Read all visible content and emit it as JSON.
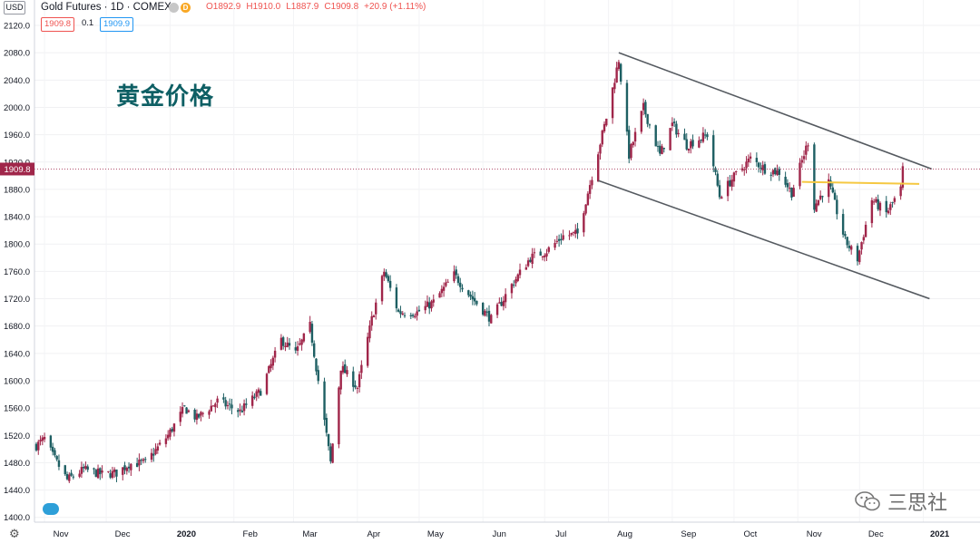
{
  "header": {
    "currency_badge": "USD",
    "title": "Gold Futures · 1D · COMEX",
    "ohlc": {
      "open": "O1892.9",
      "high": "H1910.0",
      "low": "L1887.9",
      "close": "C1909.8",
      "change": "+20.9 (+1.11%)"
    },
    "bid": "1909.8",
    "spread": "0.1",
    "ask": "1909.9",
    "icon": "D"
  },
  "overlay_title": "黄金价格",
  "watermark": "三思社",
  "colors": {
    "up": "#a0264a",
    "down": "#1e5f63",
    "trendline": "#555a60",
    "support": "#f5c842",
    "price_label": "#a0264a",
    "title_cn": "#0e5f64"
  },
  "chart_data": {
    "type": "candlestick",
    "title": "Gold Futures · 1D · COMEX",
    "y_axis": {
      "ticks": [
        1400.0,
        1440.0,
        1480.0,
        1520.0,
        1560.0,
        1600.0,
        1640.0,
        1680.0,
        1720.0,
        1760.0,
        1800.0,
        1840.0,
        1880.0,
        1920.0,
        1960.0,
        2000.0,
        2040.0,
        2080.0,
        2120.0
      ],
      "range": [
        1393,
        2128
      ],
      "position": "left"
    },
    "x_axis": {
      "labels": [
        "Nov",
        "Dec",
        "2020",
        "Feb",
        "Mar",
        "Apr",
        "May",
        "Jun",
        "Jul",
        "Aug",
        "Sep",
        "Oct",
        "Nov",
        "Dec",
        "2021"
      ]
    },
    "last_price": 1909.8,
    "grid": true,
    "anchors": [
      [
        "2019-10-28",
        1505
      ],
      [
        "2019-11-01",
        1515
      ],
      [
        "2019-11-05",
        1490
      ],
      [
        "2019-11-12",
        1455
      ],
      [
        "2019-11-20",
        1470
      ],
      [
        "2019-11-29",
        1463
      ],
      [
        "2019-12-06",
        1465
      ],
      [
        "2019-12-12",
        1478
      ],
      [
        "2019-12-20",
        1480
      ],
      [
        "2019-12-31",
        1520
      ],
      [
        "2020-01-08",
        1560
      ],
      [
        "2020-01-14",
        1545
      ],
      [
        "2020-01-24",
        1570
      ],
      [
        "2020-02-04",
        1555
      ],
      [
        "2020-02-14",
        1585
      ],
      [
        "2020-02-24",
        1660
      ],
      [
        "2020-03-02",
        1640
      ],
      [
        "2020-03-09",
        1680
      ],
      [
        "2020-03-19",
        1480
      ],
      [
        "2020-03-24",
        1620
      ],
      [
        "2020-04-01",
        1590
      ],
      [
        "2020-04-08",
        1690
      ],
      [
        "2020-04-14",
        1760
      ],
      [
        "2020-04-21",
        1700
      ],
      [
        "2020-04-30",
        1700
      ],
      [
        "2020-05-08",
        1715
      ],
      [
        "2020-05-18",
        1755
      ],
      [
        "2020-05-27",
        1720
      ],
      [
        "2020-06-05",
        1690
      ],
      [
        "2020-06-15",
        1740
      ],
      [
        "2020-06-24",
        1780
      ],
      [
        "2020-07-02",
        1790
      ],
      [
        "2020-07-10",
        1812
      ],
      [
        "2020-07-17",
        1815
      ],
      [
        "2020-07-24",
        1900
      ],
      [
        "2020-07-31",
        1985
      ],
      [
        "2020-08-06",
        2070
      ],
      [
        "2020-08-11",
        1930
      ],
      [
        "2020-08-18",
        2000
      ],
      [
        "2020-08-26",
        1930
      ],
      [
        "2020-09-01",
        1975
      ],
      [
        "2020-09-08",
        1945
      ],
      [
        "2020-09-18",
        1960
      ],
      [
        "2020-09-24",
        1870
      ],
      [
        "2020-09-30",
        1895
      ],
      [
        "2020-10-09",
        1925
      ],
      [
        "2020-10-16",
        1910
      ],
      [
        "2020-10-23",
        1905
      ],
      [
        "2020-10-29",
        1875
      ],
      [
        "2020-11-06",
        1950
      ],
      [
        "2020-11-09",
        1855
      ],
      [
        "2020-11-16",
        1890
      ],
      [
        "2020-11-24",
        1805
      ],
      [
        "2020-11-30",
        1778
      ],
      [
        "2020-12-07",
        1865
      ],
      [
        "2020-12-14",
        1845
      ],
      [
        "2020-12-21",
        1880
      ],
      [
        "2020-12-22",
        1909.8
      ]
    ],
    "annotations": [
      {
        "type": "trendline",
        "label": "upper channel",
        "from": [
          "2020-08-06",
          2080
        ],
        "to": [
          "2021-01-05",
          1910
        ]
      },
      {
        "type": "trendline",
        "label": "lower channel",
        "from": [
          "2020-07-27",
          1893
        ],
        "to": [
          "2021-01-04",
          1720
        ]
      },
      {
        "type": "horizontal-segment",
        "label": "support",
        "from": [
          "2020-11-03",
          1891
        ],
        "to": [
          "2020-12-30",
          1888
        ]
      }
    ]
  }
}
